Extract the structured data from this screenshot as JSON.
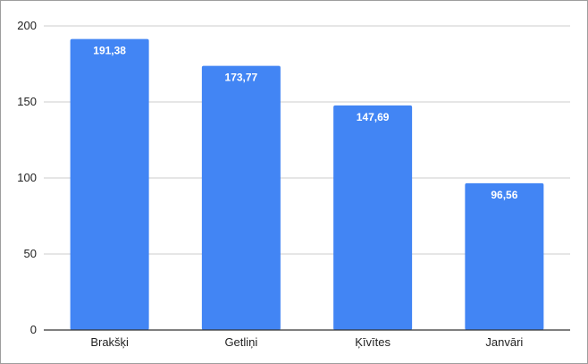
{
  "chart_data": {
    "type": "bar",
    "categories": [
      "Brakšķi",
      "Getliņi",
      "Ķīvītes",
      "Janvāri"
    ],
    "values": [
      191.38,
      173.77,
      147.69,
      96.56
    ],
    "data_labels": [
      "191,38",
      "173,77",
      "147,69",
      "96,56"
    ],
    "title": "",
    "xlabel": "",
    "ylabel": "",
    "ylim": [
      0,
      200
    ],
    "yticks": [
      0,
      50,
      100,
      150,
      200
    ],
    "grid": true,
    "legend": "none",
    "bar_color": "#4285f4",
    "grid_color": "#cccccc",
    "axis_color": "#333333"
  }
}
